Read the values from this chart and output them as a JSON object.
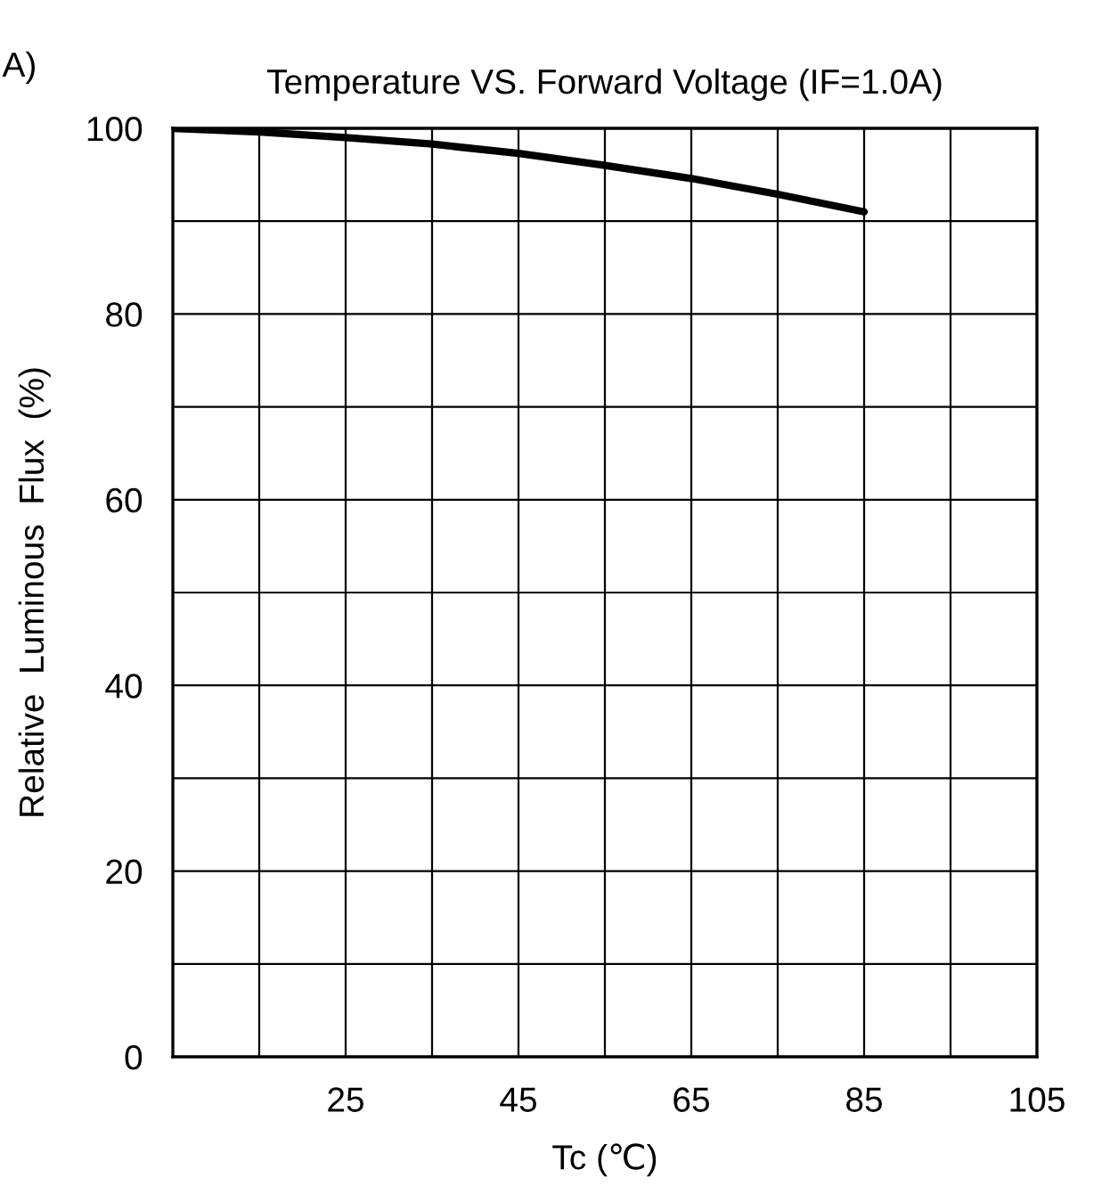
{
  "chart_data": {
    "type": "line",
    "title": "Temperature VS. Forward Voltage (IF=1.0A)",
    "xlabel": "Tc (℃)",
    "ylabel": "Relative  Luminous  Flux  (%)",
    "annotations": [
      "A)"
    ],
    "x": [
      5,
      15,
      25,
      35,
      45,
      55,
      65,
      75,
      85
    ],
    "series": [
      {
        "color": "#000000",
        "values": [
          100,
          99.6,
          99.0,
          98.3,
          97.3,
          96.0,
          94.6,
          92.9,
          91.0
        ]
      }
    ],
    "xlim": [
      5,
      105
    ],
    "xticks": [
      {
        "value": 5,
        "label": null
      },
      {
        "value": 15,
        "label": null
      },
      25,
      {
        "value": 35,
        "label": null
      },
      45,
      {
        "value": 55,
        "label": null
      },
      65,
      {
        "value": 75,
        "label": null
      },
      85,
      {
        "value": 95,
        "label": null
      },
      105
    ],
    "ylim": [
      0,
      100
    ],
    "yticks": [
      0,
      {
        "value": 10,
        "label": null
      },
      20,
      {
        "value": 30,
        "label": null
      },
      40,
      {
        "value": 50,
        "label": null
      },
      60,
      {
        "value": 70,
        "label": null
      },
      80,
      {
        "value": 90,
        "label": null
      },
      100
    ],
    "grid": true,
    "legend": false,
    "marker": "none",
    "line_style": "solid"
  }
}
